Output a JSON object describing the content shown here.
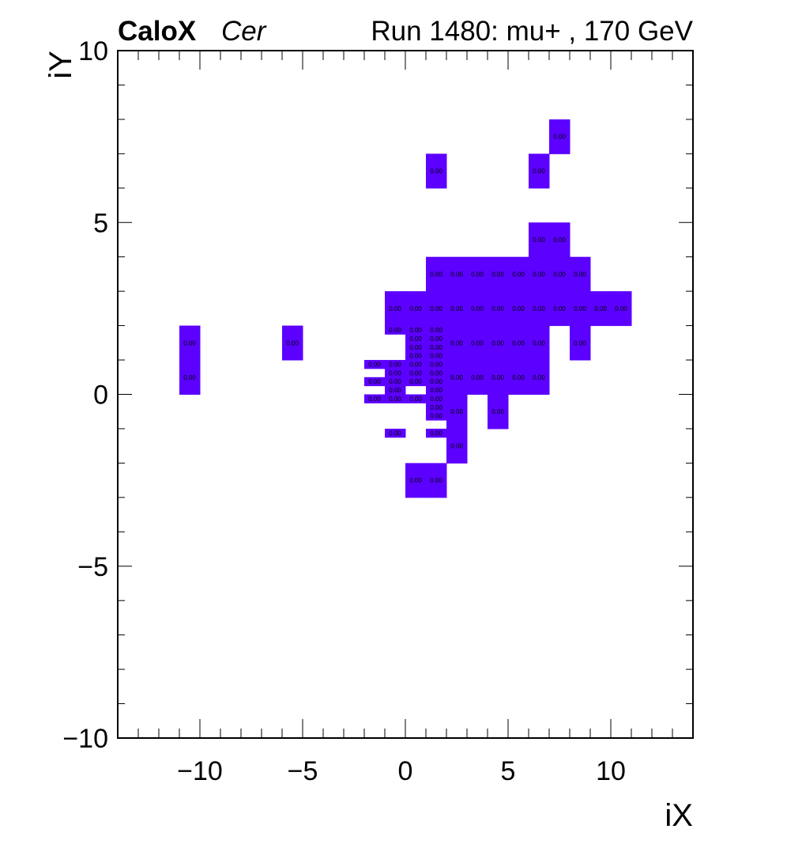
{
  "chart_data": {
    "type": "heatmap",
    "title_experiment": "CaloX",
    "title_channel": "Cer",
    "title_run": "Run 1480: mu+ , 170 GeV",
    "xlabel": "iX",
    "ylabel": "iY",
    "xlim": [
      -14,
      14
    ],
    "ylim": [
      -10,
      10
    ],
    "xticks": [
      -10,
      -5,
      0,
      5,
      10
    ],
    "yticks": [
      -10,
      -5,
      0,
      5,
      10
    ],
    "xtick_labels": [
      "−10",
      "−5",
      "0",
      "5",
      "10"
    ],
    "ytick_labels": [
      "−10",
      "−5",
      "0",
      "5",
      "10"
    ],
    "cell_color": "#5c00ff",
    "cell_value_label": "0.00",
    "coarse_bins": {
      "width": 1,
      "height": 1,
      "rows": [
        {
          "ylow": 7,
          "xlows": [
            7
          ]
        },
        {
          "ylow": 6,
          "xlows": [
            1,
            6
          ]
        },
        {
          "ylow": 4,
          "xlows": [
            6,
            7
          ]
        },
        {
          "ylow": 3,
          "xlows": [
            1,
            2,
            3,
            4,
            5,
            6,
            7,
            8
          ]
        },
        {
          "ylow": 2,
          "xlows": [
            -1,
            0,
            1,
            2,
            3,
            4,
            5,
            6,
            7,
            8,
            9,
            10
          ]
        },
        {
          "ylow": 1,
          "xlows": [
            -11,
            -6,
            2,
            3,
            4,
            5,
            6,
            8
          ]
        },
        {
          "ylow": 0,
          "xlows": [
            -11,
            2,
            3,
            4,
            5,
            6
          ]
        },
        {
          "ylow": -1,
          "xlows": [
            2,
            4
          ]
        },
        {
          "ylow": -2,
          "xlows": [
            2
          ]
        },
        {
          "ylow": -3,
          "xlows": [
            0,
            1
          ]
        }
      ]
    },
    "fine_bins": {
      "width": 1,
      "height": 0.25,
      "rows": [
        {
          "ylow": 1.75,
          "xlows": [
            -1,
            0,
            1
          ]
        },
        {
          "ylow": 1.5,
          "xlows": [
            0,
            1
          ]
        },
        {
          "ylow": 1.25,
          "xlows": [
            0,
            1
          ]
        },
        {
          "ylow": 1.0,
          "xlows": [
            0,
            1
          ]
        },
        {
          "ylow": 0.75,
          "xlows": [
            -2,
            -1,
            0,
            1
          ]
        },
        {
          "ylow": 0.5,
          "xlows": [
            -1,
            0,
            1
          ]
        },
        {
          "ylow": 0.25,
          "xlows": [
            -2,
            -1,
            0,
            1
          ]
        },
        {
          "ylow": 0.0,
          "xlows": [
            -1,
            1
          ]
        },
        {
          "ylow": -0.25,
          "xlows": [
            -2,
            -1,
            0,
            1
          ]
        },
        {
          "ylow": -0.5,
          "xlows": [
            1
          ]
        },
        {
          "ylow": -0.75,
          "xlows": [
            1
          ]
        },
        {
          "ylow": -1.25,
          "xlows": [
            -1,
            1
          ]
        }
      ]
    }
  }
}
